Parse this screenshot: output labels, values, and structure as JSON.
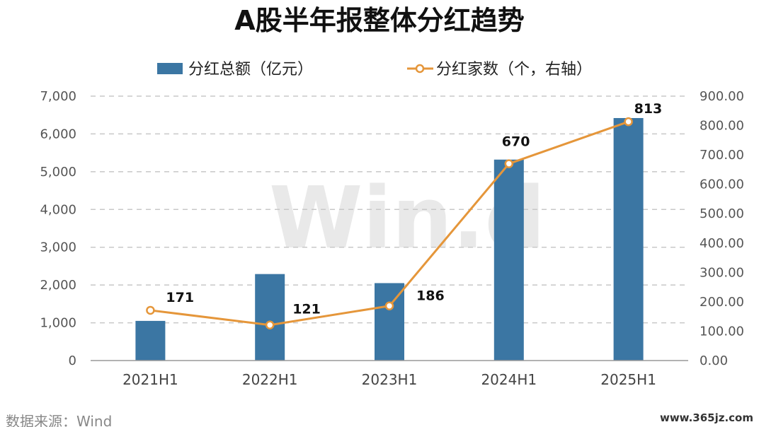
{
  "chart_data": {
    "type": "bar+line",
    "title": "A股半年报整体分红趋势",
    "categories": [
      "2021H1",
      "2022H1",
      "2023H1",
      "2024H1",
      "2025H1"
    ],
    "series": [
      {
        "name": "分红总额（亿元）",
        "type": "bar",
        "axis": "left",
        "values": [
          1050,
          2290,
          2050,
          5320,
          6420
        ]
      },
      {
        "name": "分红家数（个，右轴）",
        "type": "line",
        "axis": "right",
        "values": [
          171,
          121,
          186,
          670,
          813
        ],
        "labels": [
          "171",
          "121",
          "186",
          "670",
          "813"
        ]
      }
    ],
    "y_left": {
      "ylim": [
        0,
        7000
      ],
      "ticks": [
        "0",
        "1,000",
        "2,000",
        "3,000",
        "4,000",
        "5,000",
        "6,000",
        "7,000"
      ]
    },
    "y_right": {
      "ylim": [
        0,
        900
      ],
      "ticks": [
        "0.00",
        "100.00",
        "200.00",
        "300.00",
        "400.00",
        "500.00",
        "600.00",
        "700.00",
        "800.00",
        "900.00"
      ]
    },
    "grid": true,
    "legend_position": "top",
    "colors": {
      "bar": "#3b76a3",
      "line": "#e5963a",
      "grid": "#c8c8c8"
    }
  },
  "watermark": "Win.d",
  "source_text": "数据来源：Wind",
  "corner_text": "www.365jz.com"
}
